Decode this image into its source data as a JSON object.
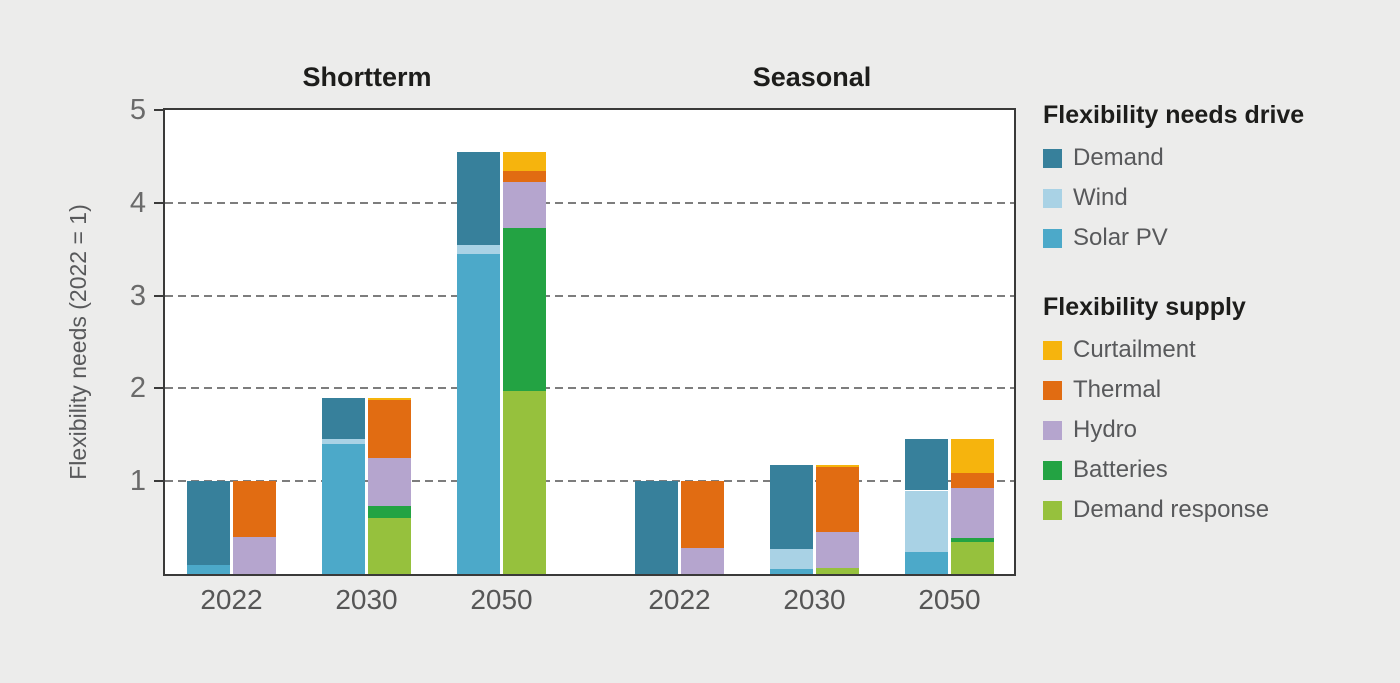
{
  "page": {
    "background": "#ECECEB"
  },
  "headers": {
    "left": "Shortterm",
    "right": "Seasonal"
  },
  "y_axis": {
    "label": "Flexibility needs (2022 = 1)",
    "ticks": [
      1,
      2,
      3,
      4,
      5
    ],
    "max": 5
  },
  "legend": {
    "needs_title": "Flexibility needs drive",
    "needs_items": [
      {
        "label": "Demand",
        "color": "#37809B"
      },
      {
        "label": "Wind",
        "color": "#A9D2E5"
      },
      {
        "label": "Solar PV",
        "color": "#4CA9C9"
      }
    ],
    "supply_title": "Flexibility supply",
    "supply_items": [
      {
        "label": "Curtailment",
        "color": "#F6B40D"
      },
      {
        "label": "Thermal",
        "color": "#E16C12"
      },
      {
        "label": "Hydro",
        "color": "#B5A5CE"
      },
      {
        "label": "Batteries",
        "color": "#23A343"
      },
      {
        "label": "Demand response",
        "color": "#96C13D"
      }
    ]
  },
  "chart_data": {
    "type": "bar",
    "stacked": true,
    "title": "",
    "ylabel": "Flexibility needs (2022 = 1)",
    "ylim": [
      0,
      5
    ],
    "grid": "horizontal dashed at 1,2,3,4",
    "legend_position": "right",
    "needs_stack_order_bottom_to_top": [
      "Solar PV",
      "Wind",
      "Demand"
    ],
    "supply_stack_order_bottom_to_top": [
      "Demand response",
      "Batteries",
      "Hydro",
      "Thermal",
      "Curtailment"
    ],
    "groups": [
      {
        "name": "Shortterm",
        "bars": [
          {
            "year": "2022",
            "needs": {
              "Demand": 0.9,
              "Wind": 0.0,
              "Solar PV": 0.1
            },
            "supply": {
              "Curtailment": 0.0,
              "Thermal": 0.6,
              "Hydro": 0.4,
              "Batteries": 0.0,
              "Demand response": 0.0
            }
          },
          {
            "year": "2030",
            "needs": {
              "Demand": 0.45,
              "Wind": 0.05,
              "Solar PV": 1.4
            },
            "supply": {
              "Curtailment": 0.02,
              "Thermal": 0.63,
              "Hydro": 0.52,
              "Batteries": 0.13,
              "Demand response": 0.6
            }
          },
          {
            "year": "2050",
            "needs": {
              "Demand": 1.0,
              "Wind": 0.1,
              "Solar PV": 3.45
            },
            "supply": {
              "Curtailment": 0.21,
              "Thermal": 0.12,
              "Hydro": 0.49,
              "Batteries": 1.76,
              "Demand response": 1.97
            }
          }
        ]
      },
      {
        "name": "Seasonal",
        "bars": [
          {
            "year": "2022",
            "needs": {
              "Demand": 1.0,
              "Wind": 0.0,
              "Solar PV": 0.0
            },
            "supply": {
              "Curtailment": 0.0,
              "Thermal": 0.72,
              "Hydro": 0.28,
              "Batteries": 0.0,
              "Demand response": 0.0
            }
          },
          {
            "year": "2030",
            "needs": {
              "Demand": 0.91,
              "Wind": 0.22,
              "Solar PV": 0.05
            },
            "supply": {
              "Curtailment": 0.03,
              "Thermal": 0.7,
              "Hydro": 0.39,
              "Batteries": 0.0,
              "Demand response": 0.06
            }
          },
          {
            "year": "2050",
            "needs": {
              "Demand": 0.55,
              "Wind": 0.66,
              "Solar PV": 0.24
            },
            "supply": {
              "Curtailment": 0.36,
              "Thermal": 0.16,
              "Hydro": 0.54,
              "Batteries": 0.04,
              "Demand response": 0.35
            }
          }
        ]
      }
    ]
  }
}
